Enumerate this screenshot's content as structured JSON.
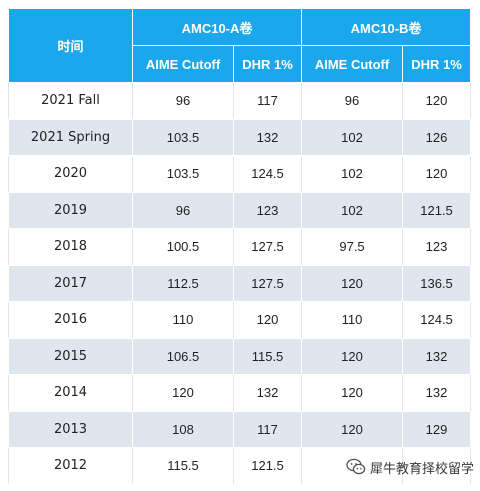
{
  "header": {
    "time": "时间",
    "group_a": "AMC10-A卷",
    "group_b": "AMC10-B卷",
    "aime_cutoff_a": "AIME Cutoff",
    "dhr_a": "DHR 1%",
    "aime_cutoff_b": "AIME Cutoff",
    "dhr_b": "DHR 1%"
  },
  "rows": [
    {
      "time": "2021 Fall",
      "a_aime": "96",
      "a_dhr": "117",
      "b_aime": "96",
      "b_dhr": "120"
    },
    {
      "time": "2021 Spring",
      "a_aime": "103.5",
      "a_dhr": "132",
      "b_aime": "102",
      "b_dhr": "126"
    },
    {
      "time": "2020",
      "a_aime": "103.5",
      "a_dhr": "124.5",
      "b_aime": "102",
      "b_dhr": "120"
    },
    {
      "time": "2019",
      "a_aime": "96",
      "a_dhr": "123",
      "b_aime": "102",
      "b_dhr": "121.5"
    },
    {
      "time": "2018",
      "a_aime": "100.5",
      "a_dhr": "127.5",
      "b_aime": "97.5",
      "b_dhr": "123"
    },
    {
      "time": "2017",
      "a_aime": "112.5",
      "a_dhr": "127.5",
      "b_aime": "120",
      "b_dhr": "136.5"
    },
    {
      "time": "2016",
      "a_aime": "110",
      "a_dhr": "120",
      "b_aime": "110",
      "b_dhr": "124.5"
    },
    {
      "time": "2015",
      "a_aime": "106.5",
      "a_dhr": "115.5",
      "b_aime": "120",
      "b_dhr": "132"
    },
    {
      "time": "2014",
      "a_aime": "120",
      "a_dhr": "132",
      "b_aime": "120",
      "b_dhr": "132"
    },
    {
      "time": "2013",
      "a_aime": "108",
      "a_dhr": "117",
      "b_aime": "120",
      "b_dhr": "129"
    },
    {
      "time": "2012",
      "a_aime": "115.5",
      "a_dhr": "121.5",
      "b_aime": "",
      "b_dhr": ""
    }
  ],
  "watermark": {
    "text": "犀牛教育择校留学",
    "icon": "wechat-logo-icon"
  },
  "colors": {
    "header_bg": "#1aa7ec",
    "header_text": "#ffffff",
    "stripe": "#dfe6ee"
  }
}
